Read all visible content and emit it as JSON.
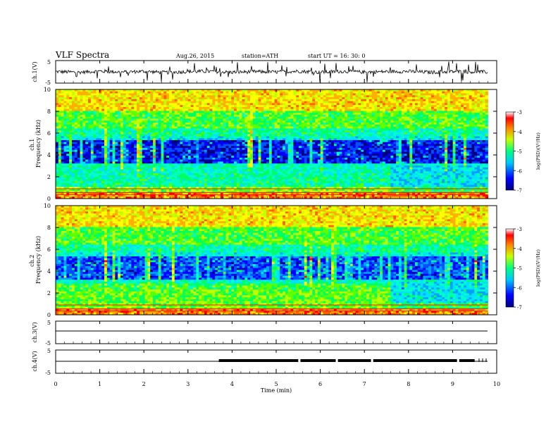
{
  "header": {
    "title": "VLF  Spectra",
    "date": "Aug.26, 2015",
    "station": "station=ATH",
    "start": "start  UT  =   16: 30: 0"
  },
  "chart_data": [
    {
      "type": "line",
      "name": "ch1-waveform",
      "ylabel": "ch.1(V)",
      "ylim": [
        -5,
        5
      ],
      "y_ticks": [
        "5",
        "-5"
      ],
      "x": [
        0,
        0.5,
        1,
        1.5,
        2,
        2.5,
        3,
        3.5,
        4,
        4.5,
        5,
        5.5,
        6,
        6.5,
        7,
        7.5,
        8,
        8.5,
        9,
        9.5,
        9.8
      ],
      "values": [
        0.1,
        -0.2,
        0.3,
        -0.1,
        0.2,
        -0.3,
        0.1,
        0.2,
        -0.2,
        0.1,
        -0.1,
        0.3,
        -0.2,
        0.2,
        -0.1,
        0.1,
        0.2,
        -0.2,
        0.1,
        0.0,
        -0.1
      ]
    },
    {
      "type": "heatmap",
      "name": "ch1-spectrogram",
      "ylabel": "ch.1\nFrequency  (kHz)",
      "ylim": [
        0,
        10
      ],
      "y_ticks": [
        "0",
        "2",
        "4",
        "6",
        "8",
        "10"
      ],
      "colorbar": {
        "label": "log(PSD)(V²/Hz)",
        "ticks": [
          "-3",
          "-4",
          "-5",
          "-6",
          "-7"
        ],
        "range": [
          -7,
          -3
        ]
      }
    },
    {
      "type": "heatmap",
      "name": "ch2-spectrogram",
      "ylabel": "ch.2\nFrequency  (kHz)",
      "ylim": [
        0,
        10
      ],
      "y_ticks": [
        "0",
        "2",
        "4",
        "6",
        "8",
        "10"
      ],
      "colorbar": {
        "label": "log(PSD)(V²/Hz)",
        "ticks": [
          "-3",
          "-4",
          "-5",
          "-6",
          "-7"
        ],
        "range": [
          -7,
          -3
        ]
      }
    },
    {
      "type": "line",
      "name": "ch3-waveform",
      "ylabel": "ch.3(V)",
      "ylim": [
        -5,
        5
      ],
      "y_ticks": [
        "5",
        "-5"
      ],
      "x": [
        0,
        9.8
      ],
      "values": [
        0,
        0
      ]
    },
    {
      "type": "line",
      "name": "ch4-waveform",
      "ylabel": "ch.4(V)",
      "ylim": [
        -5,
        5
      ],
      "y_ticks": [
        "5",
        "-5"
      ],
      "x": [
        0,
        3.7,
        3.7,
        9.5,
        9.8
      ],
      "values": [
        0,
        0,
        0.3,
        0.3,
        0
      ],
      "burst_range_min": [
        3.7,
        9.5
      ]
    }
  ],
  "x_axis": {
    "label": "Time  (min)",
    "range": [
      0,
      10
    ],
    "ticks": [
      "0",
      "1",
      "2",
      "3",
      "4",
      "5",
      "6",
      "7",
      "8",
      "9",
      "10"
    ]
  }
}
